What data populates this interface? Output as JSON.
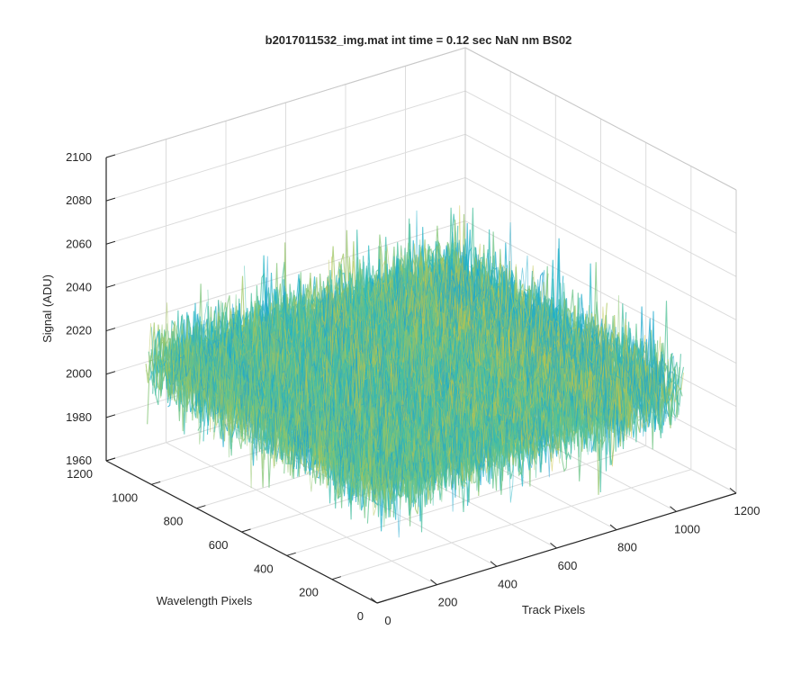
{
  "chart_data": {
    "type": "surface",
    "title": "b2017011532_img.mat int time = 0.12 sec  NaN nm BS02",
    "xlabel": "Track Pixels",
    "ylabel": "Wavelength Pixels",
    "zlabel": "Signal (ADU)",
    "xlim": [
      0,
      1200
    ],
    "ylim": [
      0,
      1200
    ],
    "zlim": [
      1960,
      2100
    ],
    "xticks": [
      0,
      200,
      400,
      600,
      800,
      1000,
      1200
    ],
    "yticks": [
      0,
      200,
      400,
      600,
      800,
      1000,
      1200
    ],
    "zticks": [
      1960,
      1980,
      2000,
      2020,
      2040,
      2060,
      2080,
      2100
    ],
    "xtick_labels": [
      "0",
      "200",
      "400",
      "600",
      "800",
      "1000",
      "1200"
    ],
    "ytick_labels": [
      "0",
      "200",
      "400",
      "600",
      "800",
      "1000",
      "1200"
    ],
    "ztick_labels": [
      "1960",
      "1980",
      "2000",
      "2020",
      "2040",
      "2060",
      "2080",
      "2100"
    ],
    "grid": true,
    "colormap": "parula",
    "surface_extent": {
      "x": [
        0,
        1024
      ],
      "y": [
        0,
        1024
      ]
    },
    "signal_mean": 2015,
    "signal_range": [
      1965,
      2092
    ]
  },
  "colors": {
    "axis": "#262626",
    "grid": "#dcdcdc",
    "colormap_stops": [
      "#0072bd",
      "#1a9ad6",
      "#24b7c4",
      "#5cc38f",
      "#a9c55a",
      "#e0c236"
    ]
  }
}
